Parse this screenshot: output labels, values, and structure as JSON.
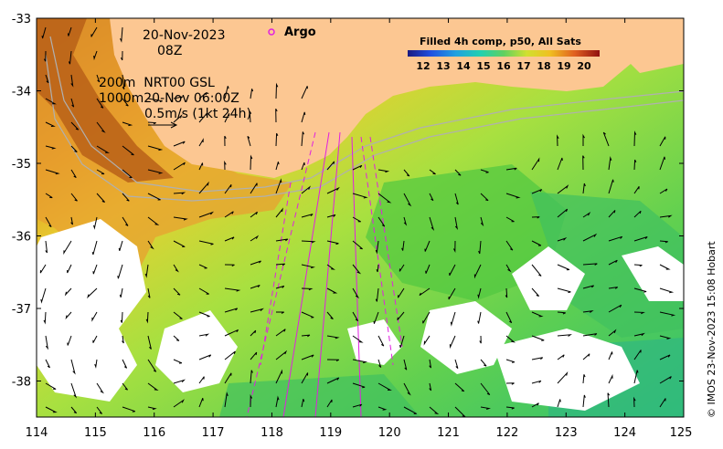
{
  "map": {
    "date_line": "20-Nov-2023",
    "time_line": "08Z",
    "argo_label": "Argo",
    "isobath_line1": "200m  NRT00 GSL",
    "isobath_line2": "1000m20-Nov 06:00Z",
    "current_scale_label": "0.5m/s (1kt 24h)",
    "legend_title": "Filled 4h comp, p50, All Sats",
    "credit": "© IMOS 23-Nov-2023 15:08 Hobart",
    "colors": {
      "land": "#fcc792",
      "cloud": "#ffffff",
      "argo_marker": "#e020e0",
      "isobath": "#b0b0b0"
    }
  },
  "axes": {
    "lon_labels": [
      "114",
      "115",
      "116",
      "117",
      "118",
      "119",
      "120",
      "121",
      "122",
      "123",
      "124",
      "125"
    ],
    "lat_labels": [
      "-33",
      "-34",
      "-35",
      "-36",
      "-37",
      "-38"
    ]
  },
  "colorbar": {
    "tick_labels": [
      "12",
      "13",
      "14",
      "15",
      "16",
      "17",
      "18",
      "19",
      "20"
    ],
    "colors": [
      "#2a2aa0",
      "#2050e0",
      "#20a0e0",
      "#20d0b0",
      "#60d060",
      "#b0e030",
      "#f0e020",
      "#f0a020",
      "#e05020",
      "#a01010"
    ]
  }
}
